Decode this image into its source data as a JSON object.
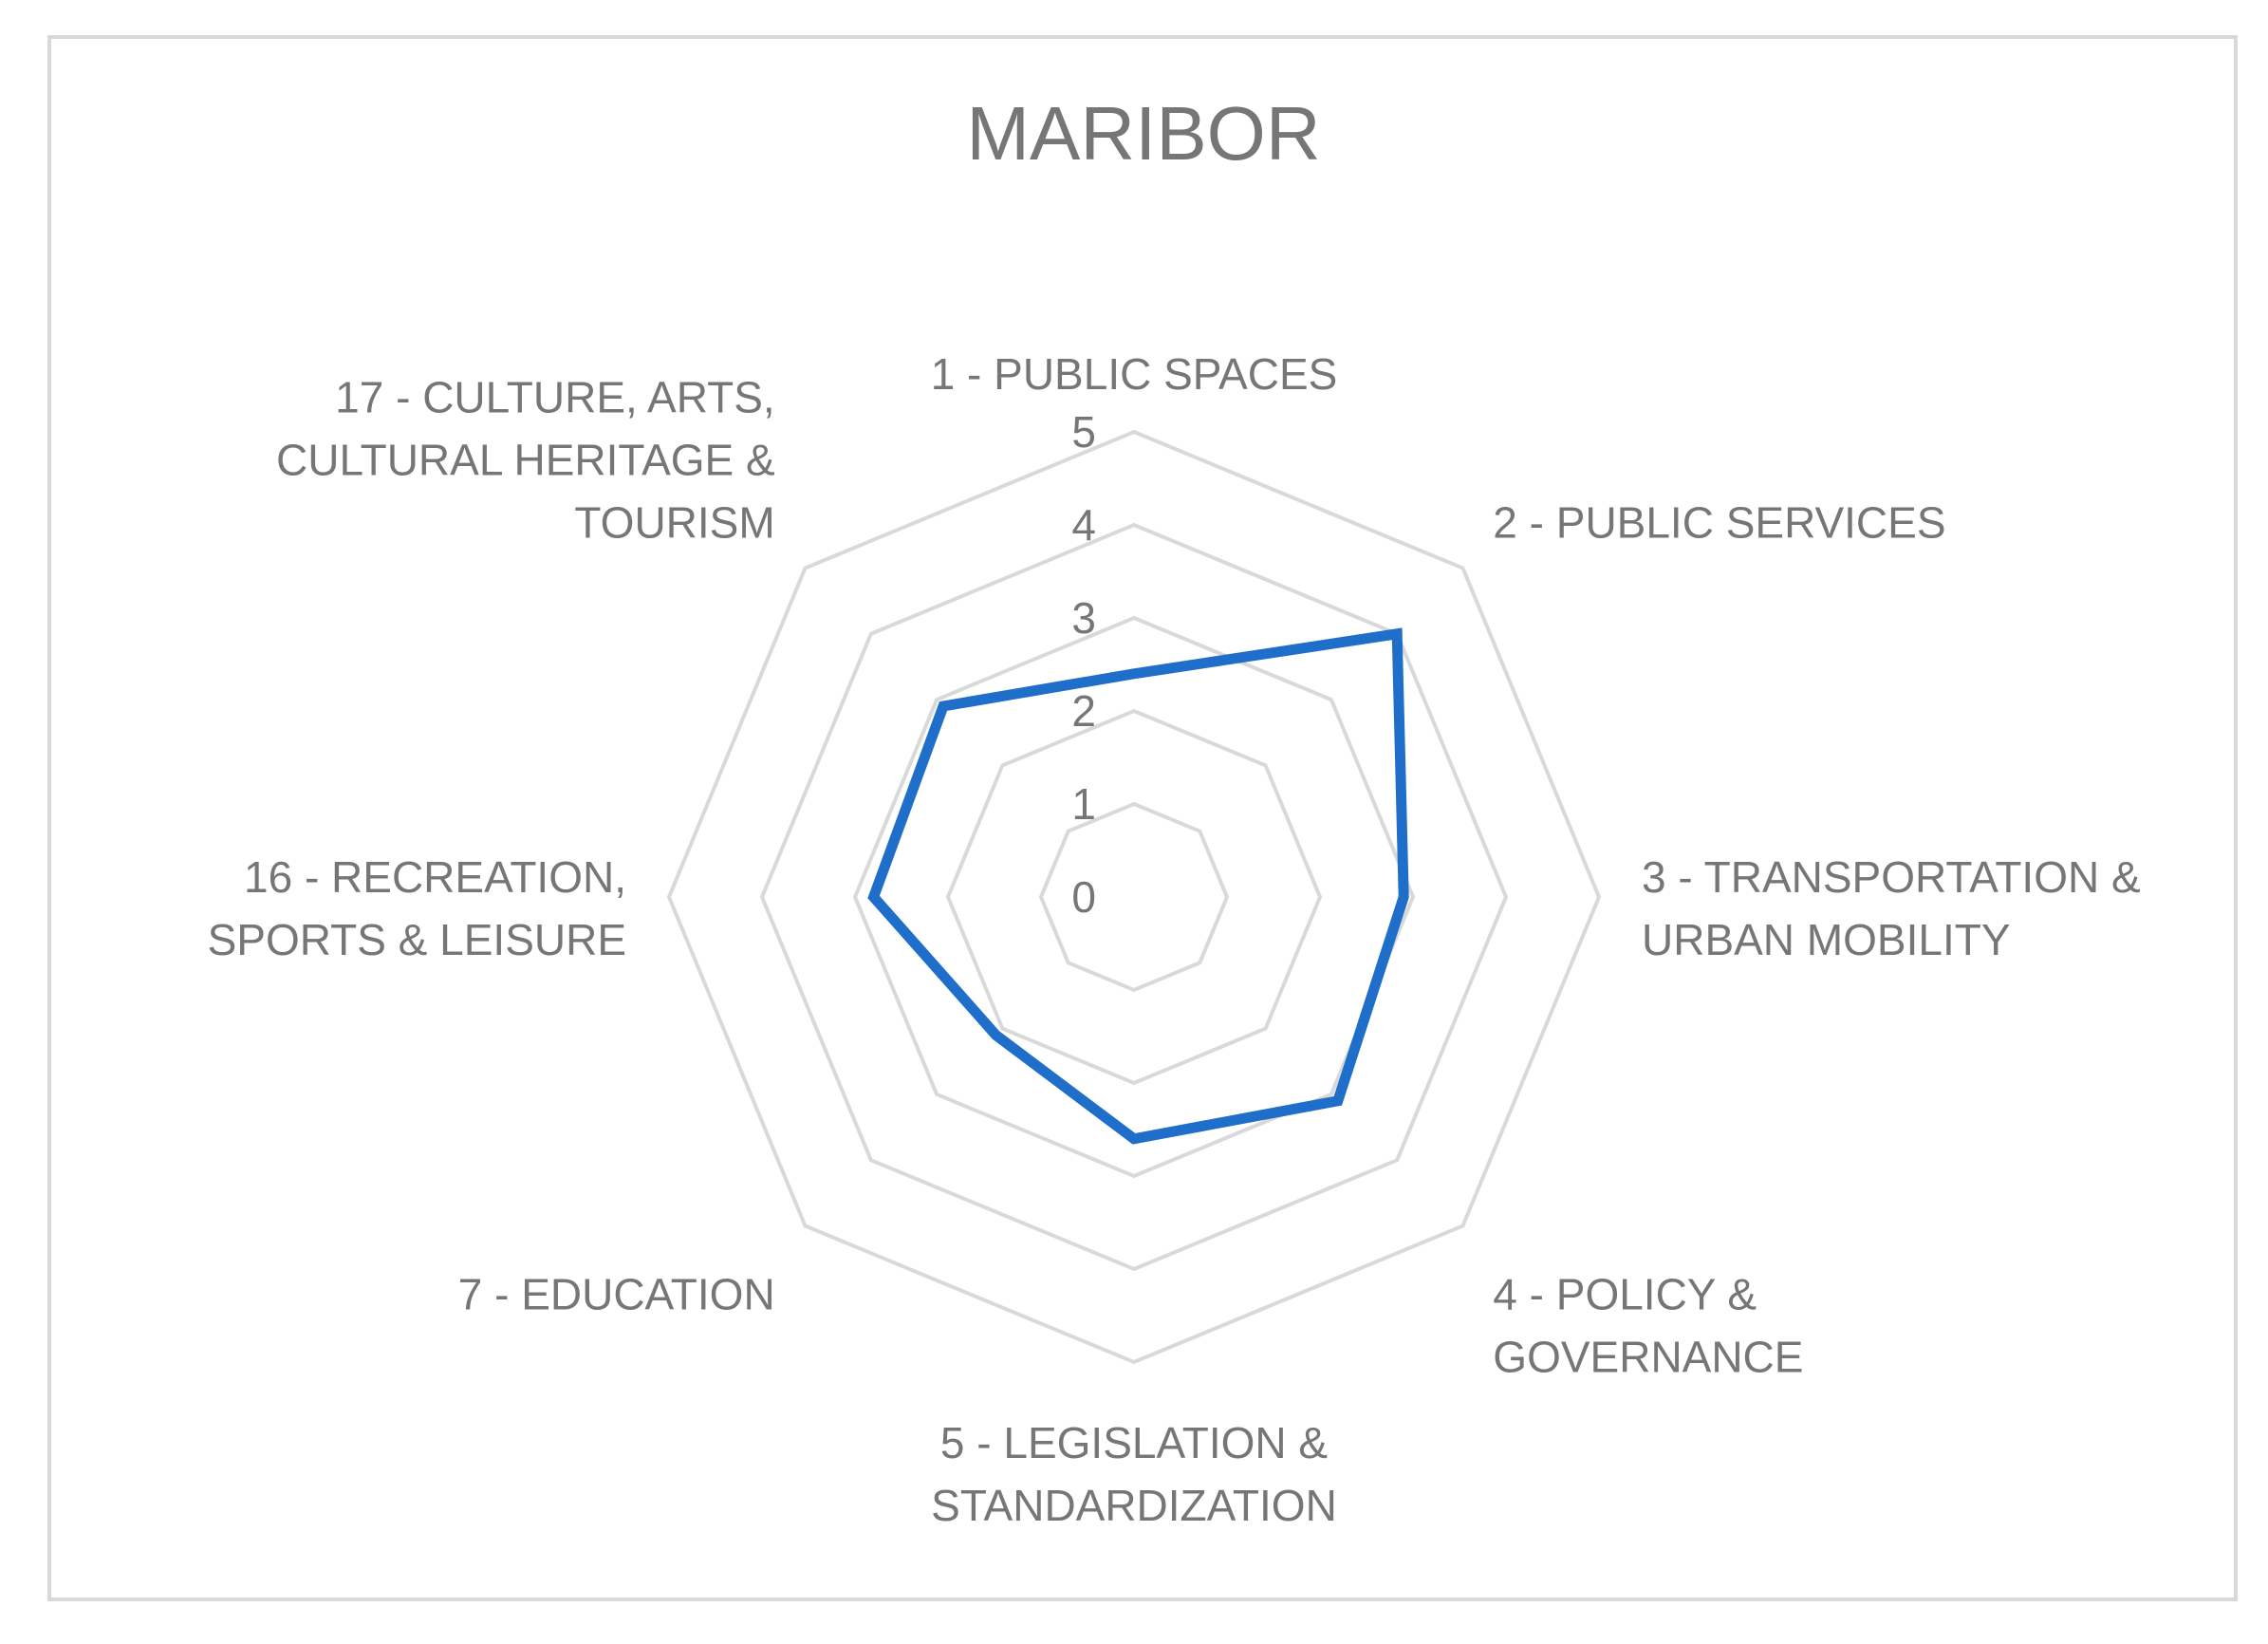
{
  "chart_data": {
    "type": "radar",
    "title": "MARIBOR",
    "categories": [
      [
        "1 - PUBLIC SPACES"
      ],
      [
        "2 - PUBLIC SERVICES"
      ],
      [
        "3 - TRANSPORTATION &",
        "URBAN MOBILITY"
      ],
      [
        "4 - POLICY &",
        "GOVERNANCE"
      ],
      [
        "5 - LEGISLATION &",
        "STANDARDIZATION"
      ],
      [
        "7 - EDUCATION"
      ],
      [
        "16 - RECREATION,",
        "SPORTS & LEISURE"
      ],
      [
        "17 - CULTURE, ARTS,",
        "CULTURAL HERITAGE &",
        "TOURISM"
      ]
    ],
    "series": [
      {
        "values": [
          2.4,
          4.0,
          2.9,
          3.1,
          2.6,
          2.1,
          2.8,
          2.9
        ]
      }
    ],
    "ticks": [
      "0",
      "1",
      "2",
      "3",
      "4",
      "5"
    ],
    "rmax": 5,
    "legend": "none",
    "colors": {
      "series": "#1f6fca",
      "grid": "#d9d9d9",
      "text": "#767676",
      "frame": "#d9d9d9"
    }
  }
}
